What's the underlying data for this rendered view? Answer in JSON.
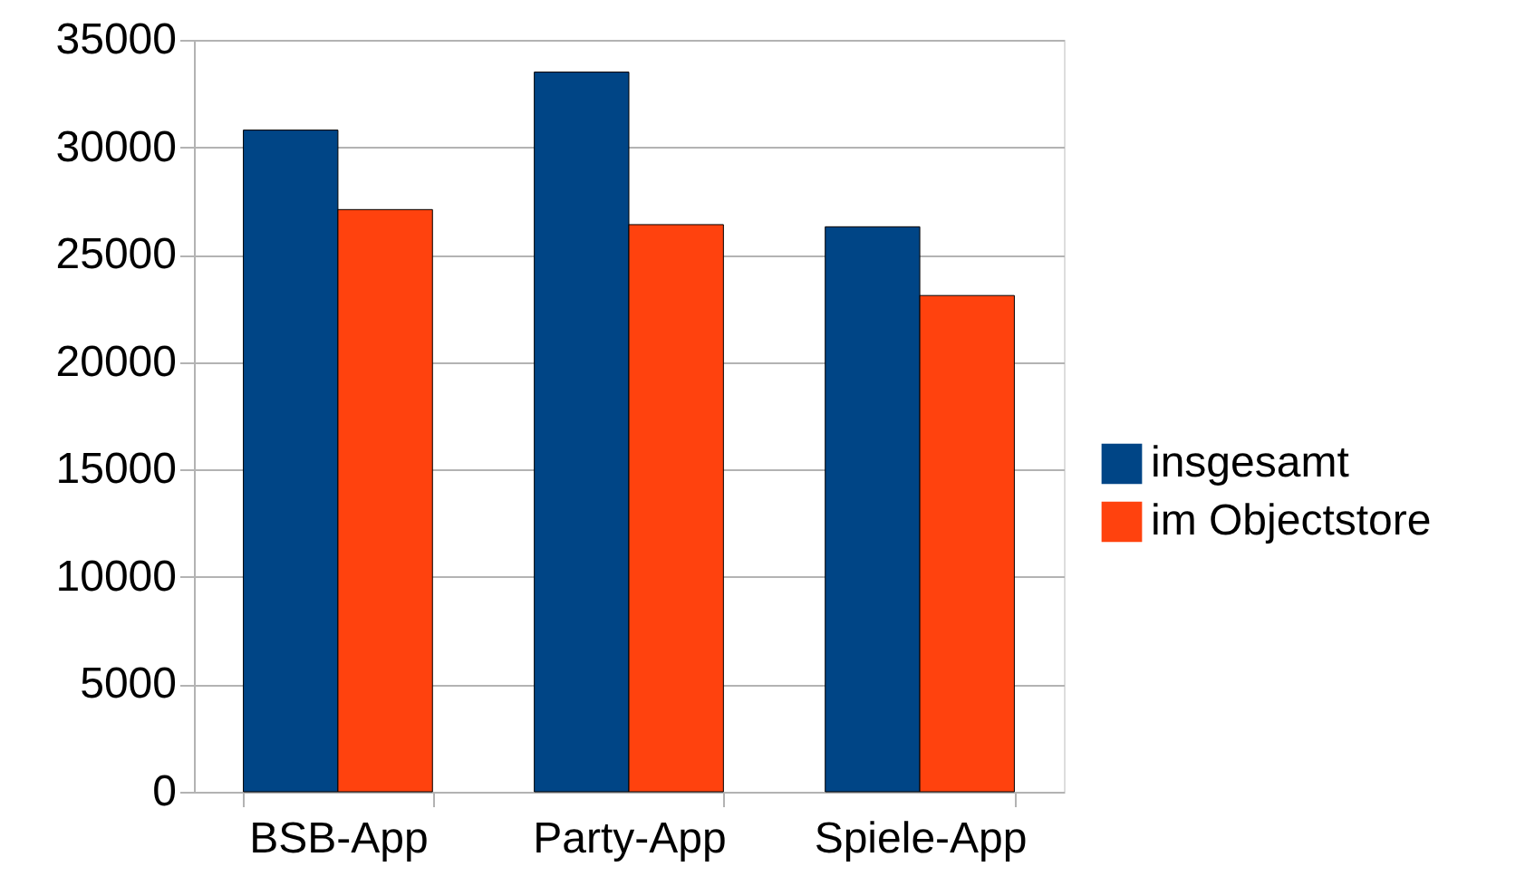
{
  "chart_data": {
    "type": "bar",
    "categories": [
      "BSB-App",
      "Party-App",
      "Spiele-App"
    ],
    "series": [
      {
        "name": "insgesamt",
        "color": "#004586",
        "values": [
          30800,
          33500,
          26300
        ]
      },
      {
        "name": "im Objectstore",
        "color": "#ff420e",
        "values": [
          27100,
          26400,
          23100
        ]
      }
    ],
    "ylim": [
      0,
      35000
    ],
    "yticks": [
      0,
      5000,
      10000,
      15000,
      20000,
      25000,
      30000,
      35000
    ],
    "grid": "y",
    "legend": "right"
  }
}
